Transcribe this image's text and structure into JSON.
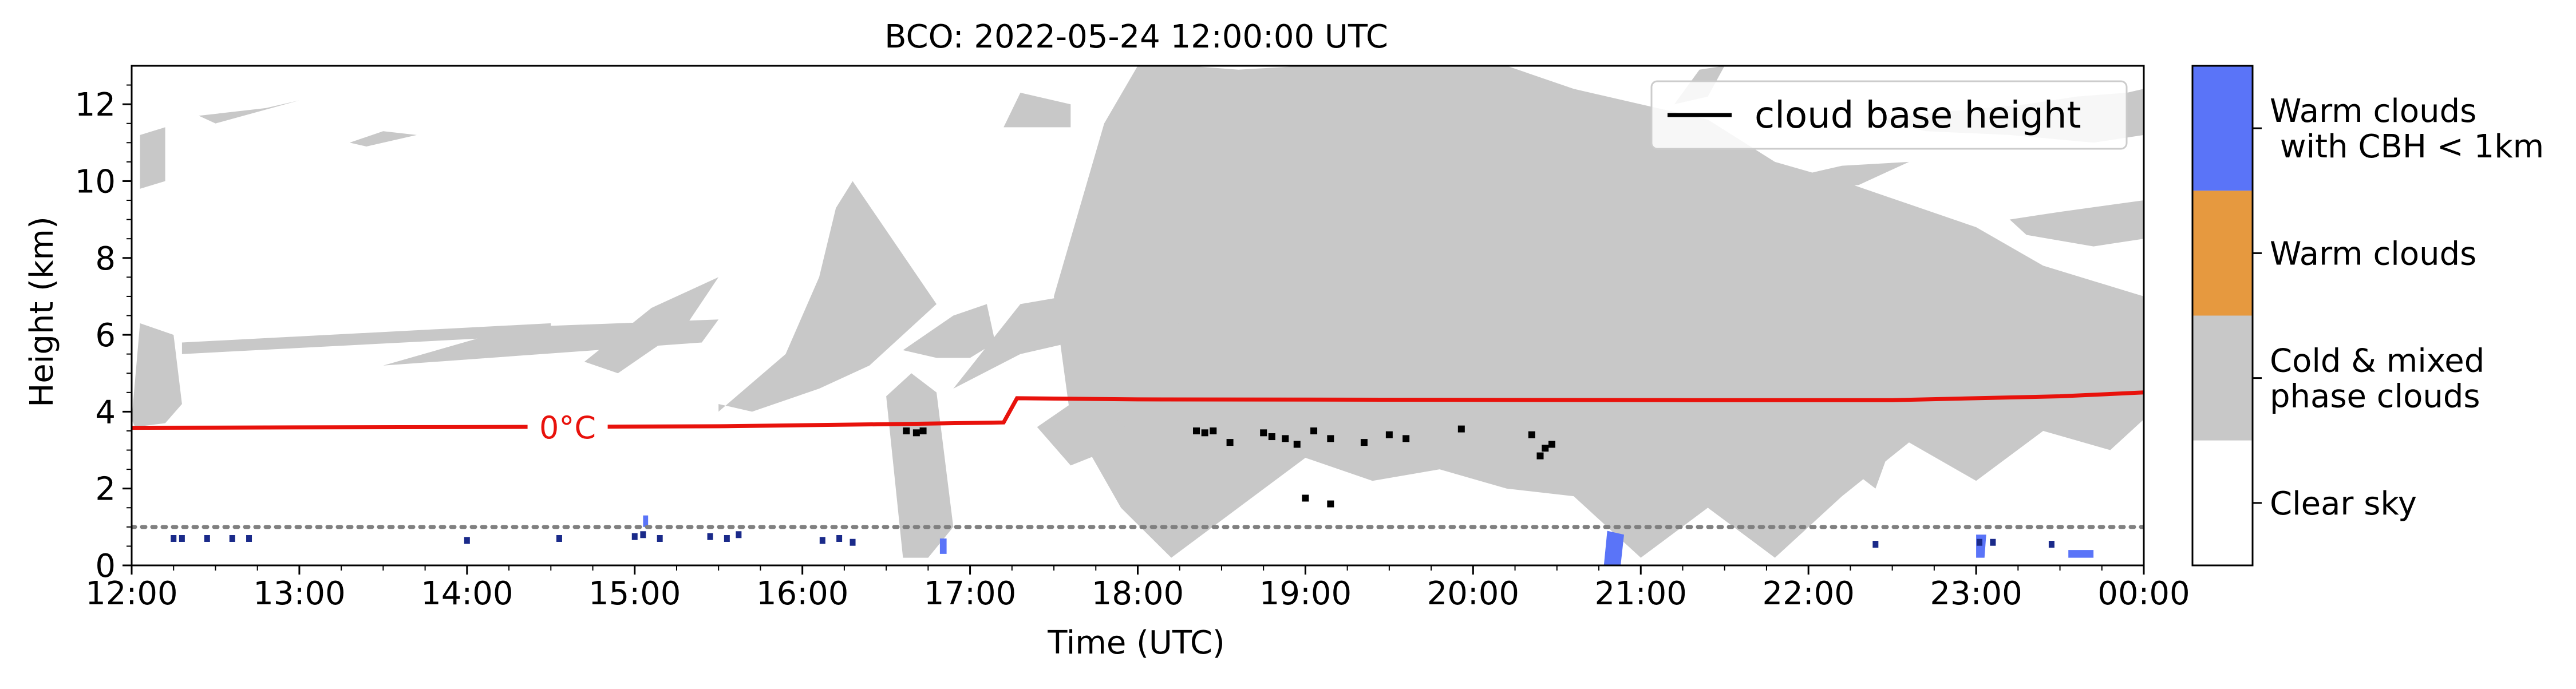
{
  "chart_data": {
    "type": "area",
    "title": "BCO: 2022-05-24 12:00:00 UTC",
    "xlabel": "Time (UTC)",
    "ylabel": "Height (km)",
    "xlim": [
      12,
      24
    ],
    "ylim": [
      0,
      13
    ],
    "x_tick_labels": [
      "12:00",
      "13:00",
      "14:00",
      "15:00",
      "16:00",
      "17:00",
      "18:00",
      "19:00",
      "20:00",
      "21:00",
      "22:00",
      "23:00",
      "00:00"
    ],
    "y_ticks": [
      0,
      2,
      4,
      6,
      8,
      10,
      12
    ],
    "grid": false,
    "legend": {
      "placement": "top-right",
      "entries": [
        "cloud base height"
      ]
    },
    "freezing_level": {
      "label": "0°C",
      "label_x": 14.6,
      "color": "#e8120c",
      "x": [
        12,
        14.0,
        15.5,
        16.6,
        17.2,
        17.28,
        18.0,
        21.3,
        22.5,
        23.5,
        24
      ],
      "y": [
        3.58,
        3.6,
        3.62,
        3.68,
        3.72,
        4.35,
        4.32,
        4.3,
        4.3,
        4.4,
        4.5
      ]
    },
    "reference_line": {
      "y": 1.0,
      "style": "dotted",
      "color": "#808080"
    },
    "cloud_base_points": {
      "x": [
        16.62,
        16.68,
        16.72,
        18.35,
        18.4,
        18.45,
        18.55,
        18.75,
        18.8,
        18.88,
        18.95,
        19.05,
        19.15,
        19.35,
        19.5,
        19.6,
        19.93,
        20.35,
        20.43,
        20.47,
        20.4,
        19.0,
        19.15
      ],
      "y": [
        3.5,
        3.45,
        3.5,
        3.5,
        3.45,
        3.5,
        3.2,
        3.45,
        3.35,
        3.3,
        3.15,
        3.5,
        3.3,
        3.2,
        3.4,
        3.3,
        3.55,
        3.4,
        3.05,
        3.15,
        2.85,
        1.75,
        1.6
      ],
      "color": "#000000"
    },
    "cold_mixed_cloud_regions": [
      {
        "x": [
          12.0,
          12.05,
          12.25,
          12.3,
          12.2,
          12.02
        ],
        "y": [
          3.8,
          6.3,
          6.0,
          4.2,
          3.7,
          3.6
        ]
      },
      {
        "x": [
          12.05,
          12.2,
          12.2,
          12.05
        ],
        "y": [
          9.8,
          10.0,
          11.4,
          11.2
        ]
      },
      {
        "x": [
          12.4,
          12.8,
          13.0,
          12.5
        ],
        "y": [
          11.7,
          11.9,
          12.1,
          11.5
        ]
      },
      {
        "x": [
          13.3,
          13.5,
          13.7,
          13.4
        ],
        "y": [
          11.0,
          11.3,
          11.2,
          10.9
        ]
      },
      {
        "x": [
          12.3,
          14.5,
          14.5,
          12.3
        ],
        "y": [
          5.5,
          6.0,
          6.3,
          5.8
        ]
      },
      {
        "x": [
          13.5,
          15.4,
          15.5,
          14.3
        ],
        "y": [
          5.2,
          5.8,
          6.4,
          6.2
        ]
      },
      {
        "x": [
          14.7,
          15.1,
          15.5,
          15.3,
          14.9
        ],
        "y": [
          5.3,
          6.7,
          7.5,
          6.2,
          5.0
        ]
      },
      {
        "x": [
          15.5,
          15.9,
          16.1,
          16.2,
          16.3,
          16.8,
          16.6,
          16.4,
          16.1,
          15.7,
          15.5
        ],
        "y": [
          4.0,
          5.5,
          7.5,
          9.3,
          10.0,
          6.8,
          6.0,
          5.2,
          4.6,
          4.0,
          4.2
        ]
      },
      {
        "x": [
          16.6,
          16.9,
          17.1,
          17.15,
          17.0,
          16.8
        ],
        "y": [
          5.6,
          6.5,
          6.8,
          5.8,
          5.4,
          5.4
        ]
      },
      {
        "x": [
          16.5,
          16.6,
          16.75,
          16.9,
          16.8,
          16.65
        ],
        "y": [
          4.4,
          0.2,
          0.2,
          1.0,
          4.5,
          5.0
        ]
      },
      {
        "x": [
          16.9,
          17.3,
          17.8,
          17.7,
          17.3
        ],
        "y": [
          4.6,
          5.5,
          6.0,
          7.1,
          6.8
        ]
      },
      {
        "x": [
          17.2,
          17.6,
          17.6,
          17.3
        ],
        "y": [
          11.4,
          11.4,
          12.0,
          12.3
        ]
      },
      {
        "x": [
          17.8,
          18.0,
          18.3,
          18.6,
          19.0,
          19.4,
          19.8,
          20.2,
          20.6,
          21.0,
          21.4,
          21.8,
          22.2,
          22.6,
          23.0,
          23.4,
          23.7,
          24.0,
          24.0,
          23.8,
          23.4,
          23.0,
          22.6,
          22.2,
          21.8,
          21.4,
          21.0,
          20.6,
          20.2,
          19.8,
          19.4,
          19.0,
          18.6,
          18.2,
          17.9,
          17.6,
          17.5
        ],
        "y": [
          11.5,
          13.0,
          13.0,
          12.9,
          13.0,
          13.0,
          13.0,
          13.0,
          12.4,
          12.0,
          11.6,
          10.5,
          10.0,
          9.4,
          8.8,
          7.8,
          7.4,
          7.0,
          3.8,
          3.0,
          3.5,
          2.2,
          3.2,
          1.8,
          0.2,
          1.5,
          0.2,
          1.8,
          2.0,
          2.5,
          2.2,
          2.8,
          1.5,
          0.2,
          1.5,
          3.8,
          7.0
        ]
      },
      {
        "x": [
          17.8,
          18.1,
          18.3,
          18.1
        ],
        "y": [
          6.8,
          7.0,
          6.0,
          5.8
        ]
      },
      {
        "x": [
          17.4,
          17.7,
          18.0,
          17.6
        ],
        "y": [
          3.6,
          4.5,
          3.3,
          2.6
        ]
      },
      {
        "x": [
          19.3,
          19.8,
          20.3,
          20.6,
          20.1,
          19.6
        ],
        "y": [
          9.5,
          9.8,
          10.3,
          10.0,
          9.6,
          9.4
        ]
      },
      {
        "x": [
          21.1,
          21.8,
          22.2,
          22.6,
          22.3,
          21.6
        ],
        "y": [
          9.8,
          10.0,
          10.4,
          10.5,
          9.9,
          9.6
        ]
      },
      {
        "x": [
          21.2,
          21.4,
          21.5,
          21.35
        ],
        "y": [
          12.0,
          12.2,
          13.0,
          12.9
        ]
      },
      {
        "x": [
          22.4,
          22.8,
          23.3,
          23.6,
          23.9,
          24.0,
          24.0,
          23.7,
          23.2,
          22.7
        ],
        "y": [
          11.6,
          11.8,
          12.0,
          12.2,
          12.3,
          12.4,
          11.2,
          11.0,
          11.2,
          11.3
        ]
      },
      {
        "x": [
          23.2,
          23.5,
          24.0,
          24.0,
          23.7,
          23.3
        ],
        "y": [
          9.0,
          9.2,
          9.5,
          8.5,
          8.3,
          8.6
        ]
      },
      {
        "x": [
          22.1,
          22.3,
          22.6,
          22.4
        ],
        "y": [
          3.0,
          4.2,
          4.4,
          2.0
        ]
      },
      {
        "x": [
          23.0,
          23.2,
          23.4,
          23.1
        ],
        "y": [
          3.5,
          4.4,
          4.5,
          2.8
        ]
      }
    ],
    "warm_cbh_lt_1km_regions": [
      {
        "x": [
          20.78,
          20.88,
          20.9,
          20.8
        ],
        "y": [
          0.0,
          0.0,
          0.8,
          0.9
        ]
      },
      {
        "x": [
          23.0,
          23.05,
          23.06,
          23.0
        ],
        "y": [
          0.2,
          0.2,
          0.8,
          0.8
        ]
      },
      {
        "x": [
          23.55,
          23.7,
          23.7,
          23.55
        ],
        "y": [
          0.2,
          0.2,
          0.4,
          0.4
        ]
      },
      {
        "x": [
          16.82,
          16.86,
          16.86,
          16.82
        ],
        "y": [
          0.3,
          0.3,
          0.7,
          0.7
        ]
      },
      {
        "x": [
          15.05,
          15.08,
          15.08,
          15.05
        ],
        "y": [
          1.0,
          1.0,
          1.3,
          1.3
        ]
      }
    ],
    "warm_cbh_lt_1km_points": {
      "x": [
        12.25,
        12.3,
        12.45,
        12.6,
        12.7,
        14.0,
        14.55,
        15.0,
        15.05,
        15.15,
        15.45,
        15.55,
        15.62,
        16.12,
        16.22,
        16.3,
        22.4,
        23.02,
        23.1,
        23.45
      ],
      "y": [
        0.7,
        0.7,
        0.7,
        0.7,
        0.7,
        0.65,
        0.7,
        0.75,
        0.8,
        0.7,
        0.75,
        0.7,
        0.8,
        0.65,
        0.7,
        0.6,
        0.55,
        0.6,
        0.6,
        0.55
      ]
    },
    "colorbar": {
      "categories": [
        {
          "label": "Warm clouds\n with CBH < 1km",
          "color": "#5a74f8"
        },
        {
          "label": "Warm clouds",
          "color": "#e6993f"
        },
        {
          "label": "Cold & mixed\nphase clouds",
          "color": "#c8c8c8"
        },
        {
          "label": "Clear sky",
          "color": "#ffffff"
        }
      ]
    }
  }
}
